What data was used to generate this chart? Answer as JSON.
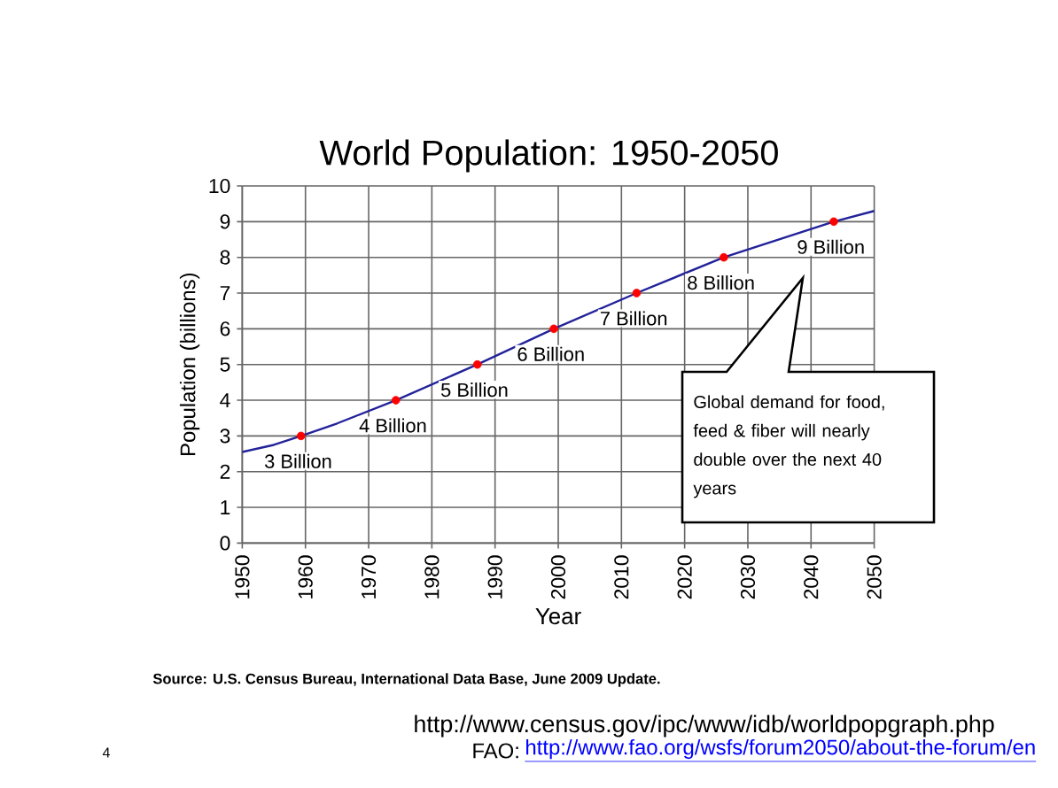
{
  "chart_data": {
    "type": "line",
    "title": "World Population: 1950-2050",
    "xlabel": "Year",
    "ylabel": "Population (billions)",
    "xlim": [
      1950,
      2050
    ],
    "xticks": [
      1950,
      1960,
      1970,
      1980,
      1990,
      2000,
      2010,
      2020,
      2030,
      2040,
      2050
    ],
    "ylim": [
      0,
      10
    ],
    "yticks": [
      0,
      1,
      2,
      3,
      4,
      5,
      6,
      7,
      8,
      9,
      10
    ],
    "grid": true,
    "series": [
      {
        "color": "#22229a",
        "x": [
          1950,
          1955,
          1959.3,
          1965,
          1974.3,
          1987.2,
          1999.3,
          2012.4,
          2026.2,
          2043.6,
          2050
        ],
        "values": [
          2.55,
          2.75,
          3,
          3.35,
          4,
          5,
          6,
          7,
          8,
          9,
          9.3
        ]
      },
      {
        "type": "scatter",
        "color": "#ff0000",
        "marker": "circle",
        "x": [
          1959.3,
          1974.3,
          1987.2,
          1999.3,
          2012.4,
          2026.2,
          2043.6
        ],
        "values": [
          3,
          4,
          5,
          6,
          7,
          8,
          9
        ]
      }
    ],
    "annotations": [
      {
        "text": "3 Billion",
        "x": 1959.3,
        "y": 3
      },
      {
        "text": "4 Billion",
        "x": 1974.3,
        "y": 4
      },
      {
        "text": "5 Billion",
        "x": 1987.2,
        "y": 5
      },
      {
        "text": "6 Billion",
        "x": 1999.3,
        "y": 6
      },
      {
        "text": "7 Billion",
        "x": 2012.4,
        "y": 7
      },
      {
        "text": "8 Billion",
        "x": 2026.2,
        "y": 8
      },
      {
        "text": "9 Billion",
        "x": 2043.6,
        "y": 9
      },
      "Global demand for food, feed & fiber will nearly double over the next 40 years",
      "Source: U.S. Census Bureau, International Data Base, June 2009 Update.",
      "http://www.census.gov/ipc/www/idb/worldpopgraph.php",
      "FAO:",
      "http://www.fao.org/wsfs/forum2050/about-the-forum/en",
      "4"
    ]
  }
}
